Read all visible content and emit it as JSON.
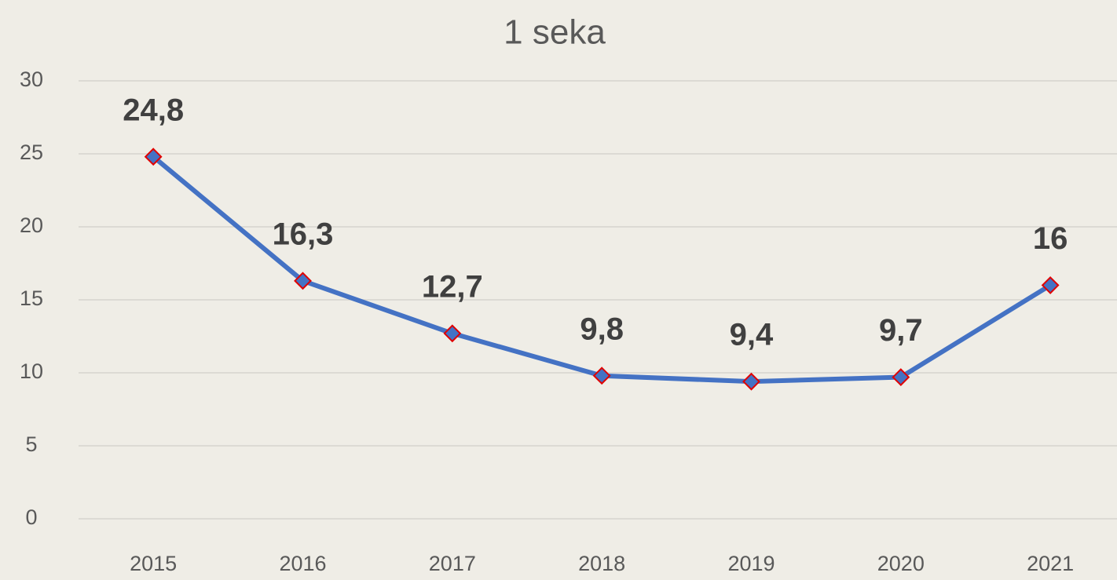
{
  "chart_data": {
    "type": "line",
    "title": "1 seka",
    "categories": [
      "2015",
      "2016",
      "2017",
      "2018",
      "2019",
      "2020",
      "2021"
    ],
    "series": [
      {
        "color": "#4472c4",
        "marker_color": "#4472c4",
        "marker_edge": "#e00000",
        "values": [
          24.8,
          16.3,
          12.7,
          9.8,
          9.4,
          9.7,
          16
        ],
        "value_labels": [
          "24,8",
          "16,3",
          "12,7",
          "9,8",
          "9,4",
          "9,7",
          "16"
        ]
      }
    ],
    "ylim": [
      0,
      30
    ],
    "yticks": [
      0,
      5,
      10,
      15,
      20,
      25,
      30
    ],
    "grid": true
  }
}
